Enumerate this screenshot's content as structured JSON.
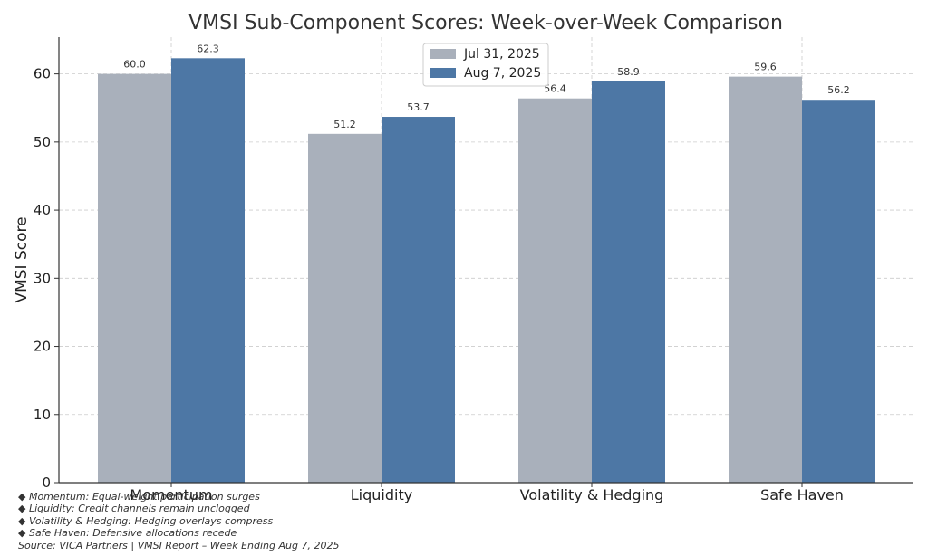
{
  "chart_data": {
    "type": "bar",
    "title": "VMSI Sub-Component Scores: Week-over-Week Comparison",
    "xlabel": "",
    "ylabel": "VMSI Score",
    "categories": [
      "Momentum",
      "Liquidity",
      "Volatility & Hedging",
      "Safe Haven"
    ],
    "series": [
      {
        "name": "Jul 31, 2025",
        "color": "#a9b0bb",
        "values": [
          60.0,
          51.2,
          56.4,
          59.6
        ],
        "labels": [
          "60.0",
          "51.2",
          "56.4",
          "59.6"
        ]
      },
      {
        "name": "Aug 7, 2025",
        "color": "#4d77a5",
        "values": [
          62.3,
          53.7,
          58.9,
          56.2
        ],
        "labels": [
          "62.3",
          "53.7",
          "58.9",
          "56.2"
        ]
      }
    ],
    "ylim": [
      0,
      65.4
    ],
    "yticks": [
      "0",
      "10",
      "20",
      "30",
      "40",
      "50",
      "60"
    ],
    "grid": true,
    "grid_style": "dashed",
    "legend_position": "top-center"
  },
  "notes": [
    "◆ Momentum: Equal-weight participation surges",
    "◆ Liquidity: Credit channels remain unclogged",
    "◆ Volatility & Hedging: Hedging overlays compress",
    "◆ Safe Haven: Defensive allocations recede"
  ],
  "source": "Source: VICA Partners | VMSI Report – Week Ending Aug 7, 2025"
}
